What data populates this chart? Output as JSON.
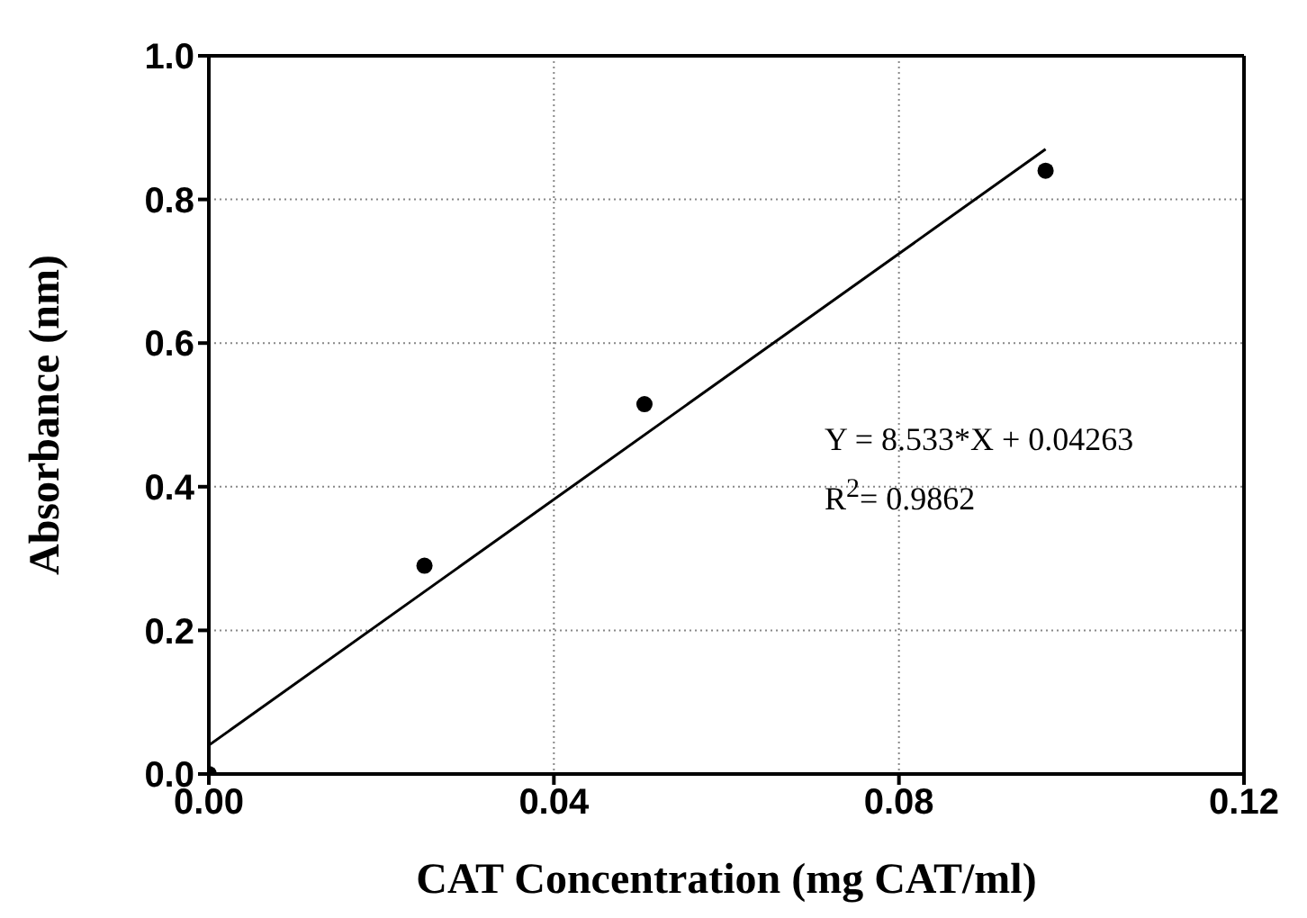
{
  "chart_data": {
    "type": "scatter",
    "xlabel": "CAT Concentration (mg CAT/ml)",
    "ylabel": "Absorbance (nm)",
    "xlim": [
      0,
      0.12
    ],
    "ylim": [
      0,
      1
    ],
    "xticks": [
      {
        "value": 0,
        "label": "0.00"
      },
      {
        "value": 0.04,
        "label": "0.04"
      },
      {
        "value": 0.08,
        "label": "0.08"
      },
      {
        "value": 0.12,
        "label": "0.12"
      }
    ],
    "yticks": [
      {
        "value": 0,
        "label": "0.0"
      },
      {
        "value": 0.2,
        "label": "0.2"
      },
      {
        "value": 0.4,
        "label": "0.4"
      },
      {
        "value": 0.6,
        "label": "0.6"
      },
      {
        "value": 0.8,
        "label": "0.8"
      },
      {
        "value": 1,
        "label": "1.0"
      }
    ],
    "grid": true,
    "series": [
      {
        "color": "#000000",
        "marker": "circle",
        "x": [
          0,
          0.025,
          0.0505,
          0.097
        ],
        "values": [
          0,
          0.29,
          0.515,
          0.84
        ]
      },
      {
        "type": "line",
        "color": "#000000",
        "x": [
          0,
          0.097
        ],
        "values": [
          0.04,
          0.87
        ]
      }
    ],
    "annotations": [
      "Y = 8.533*X + 0.04263",
      "R$^{2}$= 0.9862"
    ]
  }
}
